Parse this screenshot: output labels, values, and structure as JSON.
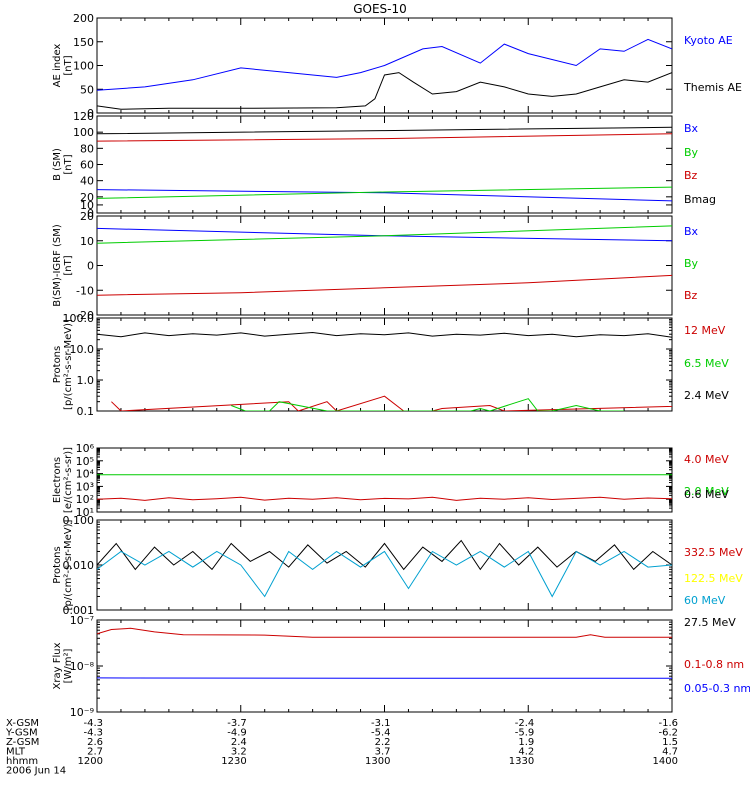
{
  "chart_data": {
    "title": "GOES-10",
    "type": "line",
    "panels": [
      {
        "id": "ae",
        "ylabel": [
          "AE index",
          "[nT]"
        ],
        "scale": "linear",
        "ylim": [
          0,
          200
        ],
        "yticks": [
          0,
          50,
          100,
          150,
          200
        ],
        "ytick_labels": [
          "0",
          "50",
          "100",
          "150",
          "200"
        ],
        "series": [
          {
            "name": "Kyoto AE",
            "color": "#0000ff",
            "x": [
              1200,
              1210,
              1220,
              1230,
              1240,
              1250,
              1255,
              1300,
              1308,
              1312,
              1320,
              1325,
              1330,
              1340,
              1345,
              1350,
              1355,
              1400
            ],
            "y": [
              48,
              55,
              70,
              95,
              85,
              75,
              85,
              100,
              135,
              140,
              105,
              145,
              125,
              100,
              135,
              130,
              155,
              135
            ]
          },
          {
            "name": "Themis AE",
            "color": "#000000",
            "x": [
              1200,
              1205,
              1215,
              1230,
              1250,
              1256,
              1258,
              1300,
              1303,
              1306,
              1310,
              1315,
              1320,
              1325,
              1330,
              1335,
              1340,
              1345,
              1350,
              1355,
              1400
            ],
            "y": [
              15,
              8,
              10,
              10,
              11,
              15,
              30,
              80,
              85,
              65,
              40,
              45,
              65,
              55,
              40,
              35,
              40,
              55,
              70,
              65,
              85
            ]
          }
        ]
      },
      {
        "id": "b",
        "ylabel": [
          "B (SM)",
          "[nT]"
        ],
        "scale": "linear",
        "ylim": [
          0,
          120
        ],
        "yticks": [
          0,
          10,
          20,
          40,
          60,
          80,
          100,
          120
        ],
        "ytick_labels": [
          "0",
          "10",
          "20",
          "40",
          "60",
          "80",
          "100",
          "120"
        ],
        "series": [
          {
            "name": "Bx",
            "color": "#0000ff",
            "x": [
              1200,
              1300,
              1400
            ],
            "y": [
              29,
              25,
              15
            ]
          },
          {
            "name": "By",
            "color": "#00cc00",
            "x": [
              1200,
              1300,
              1400
            ],
            "y": [
              18,
              26,
              32
            ]
          },
          {
            "name": "Bz",
            "color": "#cc0000",
            "x": [
              1200,
              1300,
              1400
            ],
            "y": [
              89,
              92,
              98
            ]
          },
          {
            "name": "Bmag",
            "color": "#000000",
            "x": [
              1200,
              1300,
              1400
            ],
            "y": [
              98,
              102,
              106
            ]
          }
        ]
      },
      {
        "id": "bdiff",
        "ylabel": [
          "B(SM)-IGRF (SM)",
          "[nT]"
        ],
        "scale": "linear",
        "ylim": [
          -20,
          20
        ],
        "yticks": [
          -20,
          -10,
          0,
          10,
          20
        ],
        "ytick_labels": [
          "-20",
          "-10",
          "0",
          "10",
          "20"
        ],
        "series": [
          {
            "name": "Bx",
            "color": "#0000ff",
            "x": [
              1200,
              1300,
              1400
            ],
            "y": [
              15,
              12,
              10
            ]
          },
          {
            "name": "By",
            "color": "#00cc00",
            "x": [
              1200,
              1300,
              1400
            ],
            "y": [
              9,
              12,
              16
            ]
          },
          {
            "name": "Bz",
            "color": "#cc0000",
            "x": [
              1200,
              1230,
              1300,
              1330,
              1400
            ],
            "y": [
              -12,
              -11,
              -9,
              -7,
              -4
            ]
          }
        ]
      },
      {
        "id": "protons",
        "ylabel": [
          "Protons",
          "[p/(cm²-s-sr-MeV)]"
        ],
        "scale": "log",
        "ylim": [
          0.1,
          100
        ],
        "yticks": [
          0.1,
          1,
          10,
          100
        ],
        "ytick_labels": [
          "0.1",
          "1.0",
          "10.0",
          "100.0"
        ],
        "series": [
          {
            "name": "12 MeV",
            "color": "#cc0000",
            "x": [
              1203,
              1205,
              1240,
              1242,
              1248,
              1250,
              1300,
              1304,
              1310,
              1312,
              1322,
              1325,
              1395,
              1397
            ],
            "y": [
              0.2,
              0.1,
              0.2,
              0.1,
              0.2,
              0.1,
              0.3,
              0.1,
              0.1,
              0.12,
              0.15,
              0.1,
              0.2,
              0.1
            ]
          },
          {
            "name": "6.5 MeV",
            "color": "#00cc00",
            "x": [
              1228,
              1231,
              1236,
              1238,
              1248,
              1252,
              1318,
              1320,
              1322,
              1328,
              1330,
              1332,
              1335,
              1340,
              1345,
              1350
            ],
            "y": [
              0.15,
              0.1,
              0.1,
              0.2,
              0.1,
              0.1,
              0.1,
              0.12,
              0.1,
              0.2,
              0.25,
              0.1,
              0.1,
              0.15,
              0.1,
              0.1
            ]
          },
          {
            "name": "2.4 MeV",
            "color": "#000000",
            "x": [
              1200,
              1205,
              1210,
              1215,
              1220,
              1225,
              1230,
              1235,
              1240,
              1245,
              1250,
              1255,
              1300,
              1305,
              1310,
              1315,
              1320,
              1325,
              1330,
              1335,
              1340,
              1345,
              1350,
              1355,
              1400
            ],
            "y": [
              30,
              25,
              33,
              27,
              31,
              28,
              33,
              26,
              30,
              34,
              27,
              31,
              29,
              33,
              26,
              30,
              28,
              32,
              27,
              30,
              25,
              29,
              27,
              31,
              24
            ]
          }
        ]
      },
      {
        "id": "electrons",
        "ylabel": [
          "Electrons",
          "[e/(cm²-s-sr)]"
        ],
        "scale": "log",
        "ylim": [
          10,
          1000000
        ],
        "yticks": [
          10,
          100,
          1000,
          10000,
          100000,
          1000000
        ],
        "ytick_labels": [
          "10¹",
          "10²",
          "10³",
          "10⁴",
          "10⁵",
          "10⁶"
        ],
        "series": [
          {
            "name": "4.0 MeV",
            "color": "#cc0000",
            "x": [
              1200,
              1205,
              1210,
              1215,
              1220,
              1225,
              1230,
              1235,
              1240,
              1245,
              1250,
              1255,
              1300,
              1305,
              1310,
              1315,
              1320,
              1325,
              1330,
              1335,
              1340,
              1345,
              1350,
              1355,
              1400
            ],
            "y": [
              100,
              120,
              80,
              130,
              90,
              110,
              140,
              85,
              120,
              100,
              130,
              90,
              115,
              105,
              140,
              80,
              120,
              100,
              130,
              95,
              115,
              140,
              100,
              125,
              110
            ]
          },
          {
            "name": "2.0 MeV",
            "color": "#00cc00",
            "x": [
              1200,
              1300,
              1400
            ],
            "y": [
              8000,
              8200,
              8000
            ]
          },
          {
            "name": "0.6 MeV",
            "color": "#000000",
            "x": [
              1200,
              1300,
              1400
            ],
            "y": [
              1000000,
              1000000,
              1000000
            ]
          }
        ]
      },
      {
        "id": "protons_hi",
        "ylabel": [
          "Protons",
          "[p/(cm²-s-sr-MeV)]"
        ],
        "scale": "log",
        "ylim": [
          0.001,
          0.1
        ],
        "yticks": [
          0.001,
          0.01,
          0.1
        ],
        "ytick_labels": [
          "0.001",
          "0.010",
          "0.100"
        ],
        "series": [
          {
            "name": "27.5 MeV",
            "color": "#000000",
            "x": [
              1200,
              1204,
              1208,
              1212,
              1216,
              1220,
              1224,
              1228,
              1232,
              1236,
              1240,
              1244,
              1248,
              1252,
              1256,
              1300,
              1304,
              1308,
              1312,
              1316,
              1320,
              1324,
              1328,
              1332,
              1336,
              1340,
              1344,
              1348,
              1352,
              1356,
              1400
            ],
            "y": [
              0.01,
              0.03,
              0.008,
              0.025,
              0.01,
              0.02,
              0.008,
              0.03,
              0.012,
              0.02,
              0.009,
              0.028,
              0.011,
              0.02,
              0.009,
              0.03,
              0.008,
              0.025,
              0.012,
              0.035,
              0.008,
              0.03,
              0.01,
              0.025,
              0.009,
              0.02,
              0.012,
              0.028,
              0.008,
              0.02,
              0.01
            ]
          },
          {
            "name": "60 MeV",
            "color": "#00a0d0",
            "x": [
              1200,
              1205,
              1210,
              1215,
              1220,
              1225,
              1230,
              1235,
              1240,
              1245,
              1250,
              1255,
              1300,
              1305,
              1310,
              1315,
              1320,
              1325,
              1330,
              1335,
              1340,
              1345,
              1350,
              1355,
              1400
            ],
            "y": [
              0.008,
              0.02,
              0.01,
              0.02,
              0.009,
              0.02,
              0.01,
              0.002,
              0.02,
              0.008,
              0.02,
              0.009,
              0.02,
              0.003,
              0.02,
              0.01,
              0.02,
              0.009,
              0.02,
              0.002,
              0.02,
              0.01,
              0.02,
              0.009,
              0.01
            ]
          },
          {
            "name": "122.5 MeV",
            "color": "#ffff00",
            "x": [],
            "y": []
          },
          {
            "name": "332.5 MeV",
            "color": "#cc0000",
            "x": [],
            "y": []
          }
        ]
      },
      {
        "id": "xray",
        "ylabel": [
          "Xray Flux",
          "[W/m²]"
        ],
        "scale": "log",
        "ylim": [
          1e-09,
          1e-07
        ],
        "yticks": [
          1e-09,
          1e-08,
          1e-07
        ],
        "ytick_labels": [
          "10⁻⁹",
          "10⁻⁸",
          "10⁻⁷"
        ],
        "series": [
          {
            "name": "0.1-0.8 nm",
            "color": "#cc0000",
            "x": [
              1200,
              1203,
              1207,
              1212,
              1218,
              1235,
              1245,
              1330,
              1340,
              1343,
              1346,
              1400
            ],
            "y": [
              5e-08,
              6.2e-08,
              6.6e-08,
              5.5e-08,
              4.8e-08,
              4.7e-08,
              4.2e-08,
              4.2e-08,
              4.2e-08,
              4.8e-08,
              4.2e-08,
              4.2e-08
            ]
          },
          {
            "name": "0.05-0.3 nm",
            "color": "#0000ff",
            "x": [
              1200,
              1300,
              1400
            ],
            "y": [
              5.5e-09,
              5.4e-09,
              5.4e-09
            ]
          }
        ]
      }
    ],
    "x_axis": {
      "range": [
        1200,
        1400
      ],
      "rows": [
        {
          "label": "X-GSM",
          "values": [
            "-4.3",
            "-3.7",
            "-3.1",
            "-2.4",
            "-1.6"
          ]
        },
        {
          "label": "Y-GSM",
          "values": [
            "-4.3",
            "-4.9",
            "-5.4",
            "-5.9",
            "-6.2"
          ]
        },
        {
          "label": "Z-GSM",
          "values": [
            "2.6",
            "2.4",
            "2.2",
            "1.9",
            "1.5"
          ]
        },
        {
          "label": "MLT",
          "values": [
            "2.7",
            "3.2",
            "3.7",
            "4.2",
            "4.7"
          ]
        },
        {
          "label": "hhmm",
          "values": [
            "1200",
            "1230",
            "1300",
            "1330",
            "1400"
          ]
        }
      ],
      "date": "2006 Jun 14"
    }
  }
}
